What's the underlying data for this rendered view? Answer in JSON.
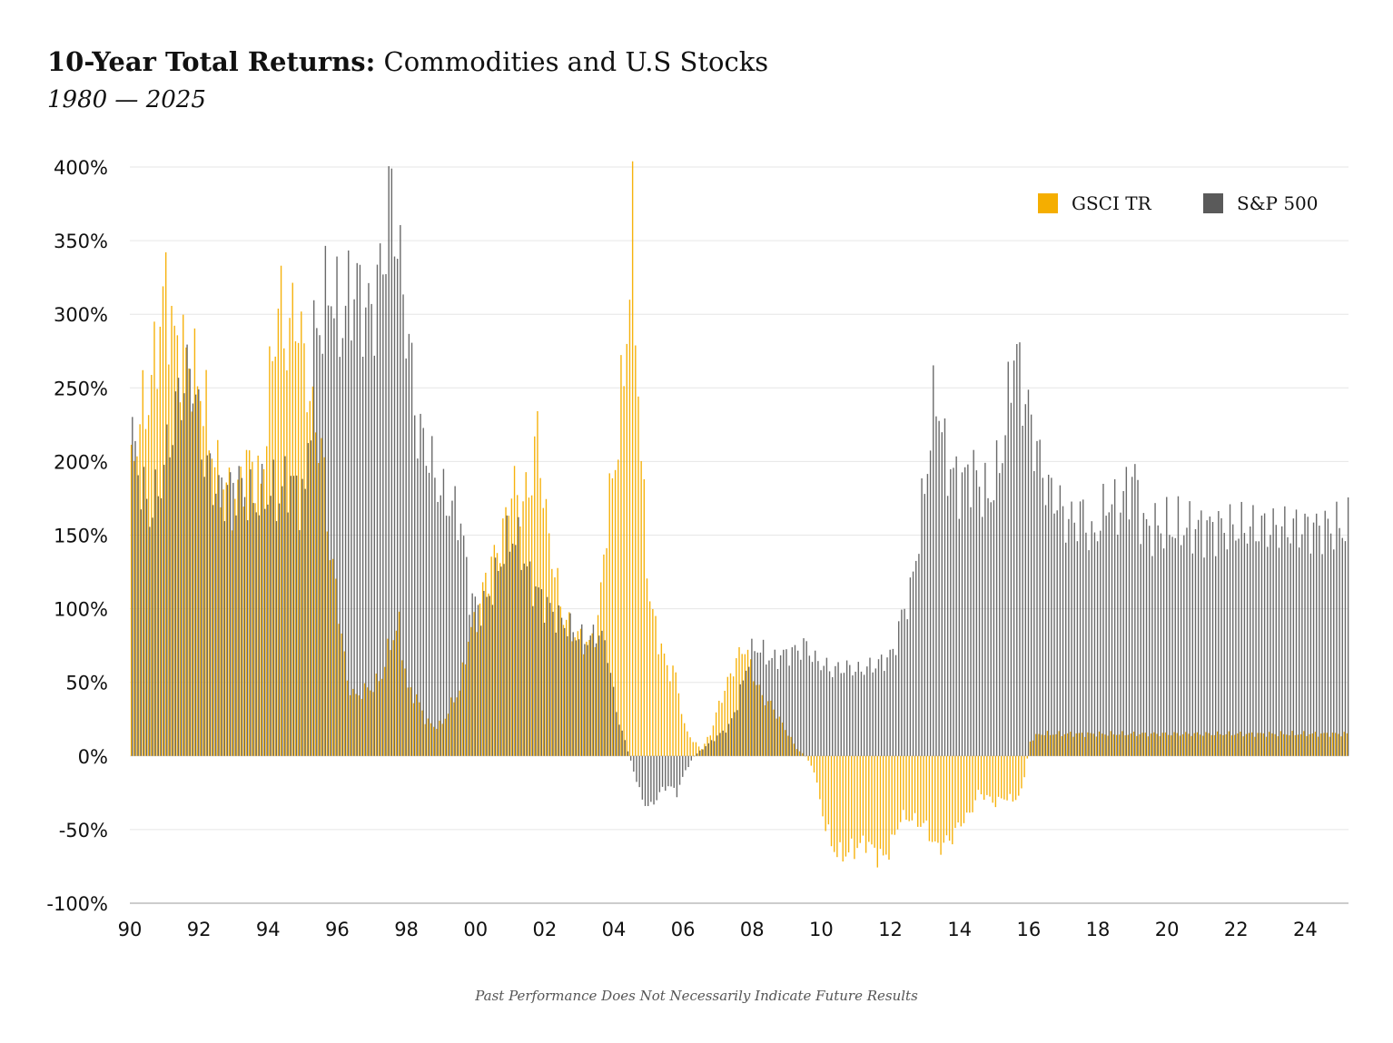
{
  "header": {
    "title_bold": "10-Year Total Returns:",
    "title_rest": " Commodities and U.S Stocks",
    "subtitle": "1980 — 2025"
  },
  "footnote": "Past Performance Does Not Necessarily Indicate Future Results",
  "colors": {
    "gsci": "#F5AE00",
    "sp500": "#5a5a5a",
    "grid": "#e6e6e6",
    "axis": "#999999"
  },
  "chart_data": {
    "type": "bar",
    "title": "10-Year Total Returns: Commodities and U.S Stocks",
    "subtitle": "1980 — 2025",
    "x_unit": "year",
    "xlim": [
      1990,
      2025.25
    ],
    "ylim": [
      -100,
      400
    ],
    "yticks": [
      400,
      350,
      300,
      250,
      200,
      150,
      100,
      50,
      0,
      -50,
      -100
    ],
    "ytick_labels": [
      "400%",
      "350%",
      "300%",
      "250%",
      "200%",
      "150%",
      "100%",
      "50%",
      "0%",
      "-50%",
      "-100%"
    ],
    "xticks": [
      1990,
      1992,
      1994,
      1996,
      1998,
      2000,
      2002,
      2004,
      2006,
      2008,
      2010,
      2012,
      2014,
      2016,
      2018,
      2020,
      2022,
      2024
    ],
    "xtick_labels": [
      "90",
      "92",
      "94",
      "96",
      "98",
      "00",
      "02",
      "04",
      "06",
      "08",
      "10",
      "12",
      "14",
      "16",
      "18",
      "20",
      "22",
      "24"
    ],
    "grid": "horizontal",
    "legend_position": "top-right",
    "sampling": "quarterly",
    "x_start": 1990.0,
    "x_step": 0.25,
    "series": [
      {
        "name": "GSCI TR",
        "color": "#F5AE00",
        "values": [
          190,
          230,
          242,
          280,
          320,
          280,
          275,
          262,
          250,
          220,
          190,
          182,
          172,
          195,
          200,
          180,
          250,
          310,
          280,
          305,
          270,
          230,
          210,
          140,
          100,
          50,
          40,
          45,
          47,
          55,
          78,
          88,
          45,
          40,
          25,
          20,
          22,
          35,
          45,
          80,
          95,
          120,
          135,
          150,
          185,
          170,
          180,
          220,
          160,
          125,
          95,
          85,
          80,
          75,
          90,
          160,
          200,
          260,
          355,
          200,
          105,
          80,
          60,
          55,
          20,
          10,
          5,
          15,
          35,
          50,
          65,
          75,
          55,
          40,
          35,
          25,
          15,
          5,
          0,
          -10,
          -40,
          -60,
          -68,
          -65,
          -62,
          -58,
          -65,
          -70,
          -60,
          -42,
          -42,
          -45,
          -48,
          -62,
          -60,
          -55,
          -45,
          -40,
          -25,
          -28,
          -32,
          -28,
          -30,
          -25,
          10,
          15
        ]
      },
      {
        "name": "S&P 500",
        "color": "#5a5a5a",
        "values": [
          215,
          185,
          165,
          180,
          205,
          235,
          255,
          262,
          210,
          190,
          180,
          180,
          185,
          180,
          172,
          175,
          180,
          175,
          190,
          180,
          175,
          280,
          300,
          320,
          290,
          310,
          320,
          300,
          305,
          340,
          385,
          330,
          280,
          220,
          210,
          190,
          175,
          170,
          160,
          110,
          100,
          105,
          120,
          140,
          150,
          140,
          120,
          110,
          102,
          95,
          90,
          85,
          80,
          80,
          85,
          70,
          30,
          10,
          -10,
          -30,
          -35,
          -25,
          -20,
          -25,
          -10,
          0,
          5,
          10,
          15,
          20,
          35,
          60,
          75,
          70,
          65,
          68,
          70,
          72,
          75,
          65,
          62,
          58,
          60,
          60,
          58,
          60,
          62,
          65,
          70,
          95,
          110,
          150,
          200,
          250,
          205,
          190,
          185,
          195,
          185,
          175,
          190,
          220,
          280,
          250,
          225,
          200,
          180,
          175,
          160,
          160,
          165,
          145,
          160,
          175,
          165,
          180,
          190,
          155
        ]
      }
    ]
  }
}
